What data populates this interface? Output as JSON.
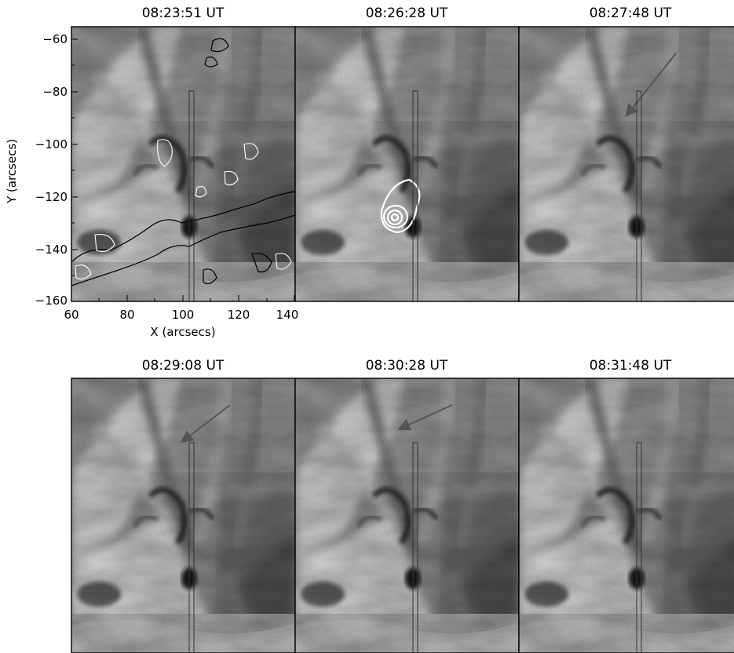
{
  "panels": [
    {
      "id": "p1",
      "title": "08:23:51 UT"
    },
    {
      "id": "p2",
      "title": "08:26:28 UT"
    },
    {
      "id": "p3",
      "title": "08:27:48 UT"
    },
    {
      "id": "p4",
      "title": "08:29:08 UT"
    },
    {
      "id": "p5",
      "title": "08:30:28 UT"
    },
    {
      "id": "p6",
      "title": "08:31:48 UT"
    }
  ],
  "axes": {
    "xlabel": "X (arcsecs)",
    "ylabel": "Y (arcsecs)",
    "xticks": [
      "60",
      "80",
      "100",
      "120",
      "140"
    ],
    "yticks": [
      "−60",
      "−80",
      "−100",
      "−120",
      "−140",
      "−160"
    ]
  },
  "colors": {
    "arrow": "#555555",
    "contour_white": "#ffffff",
    "contour_black": "#000000",
    "slit": "#333333"
  }
}
